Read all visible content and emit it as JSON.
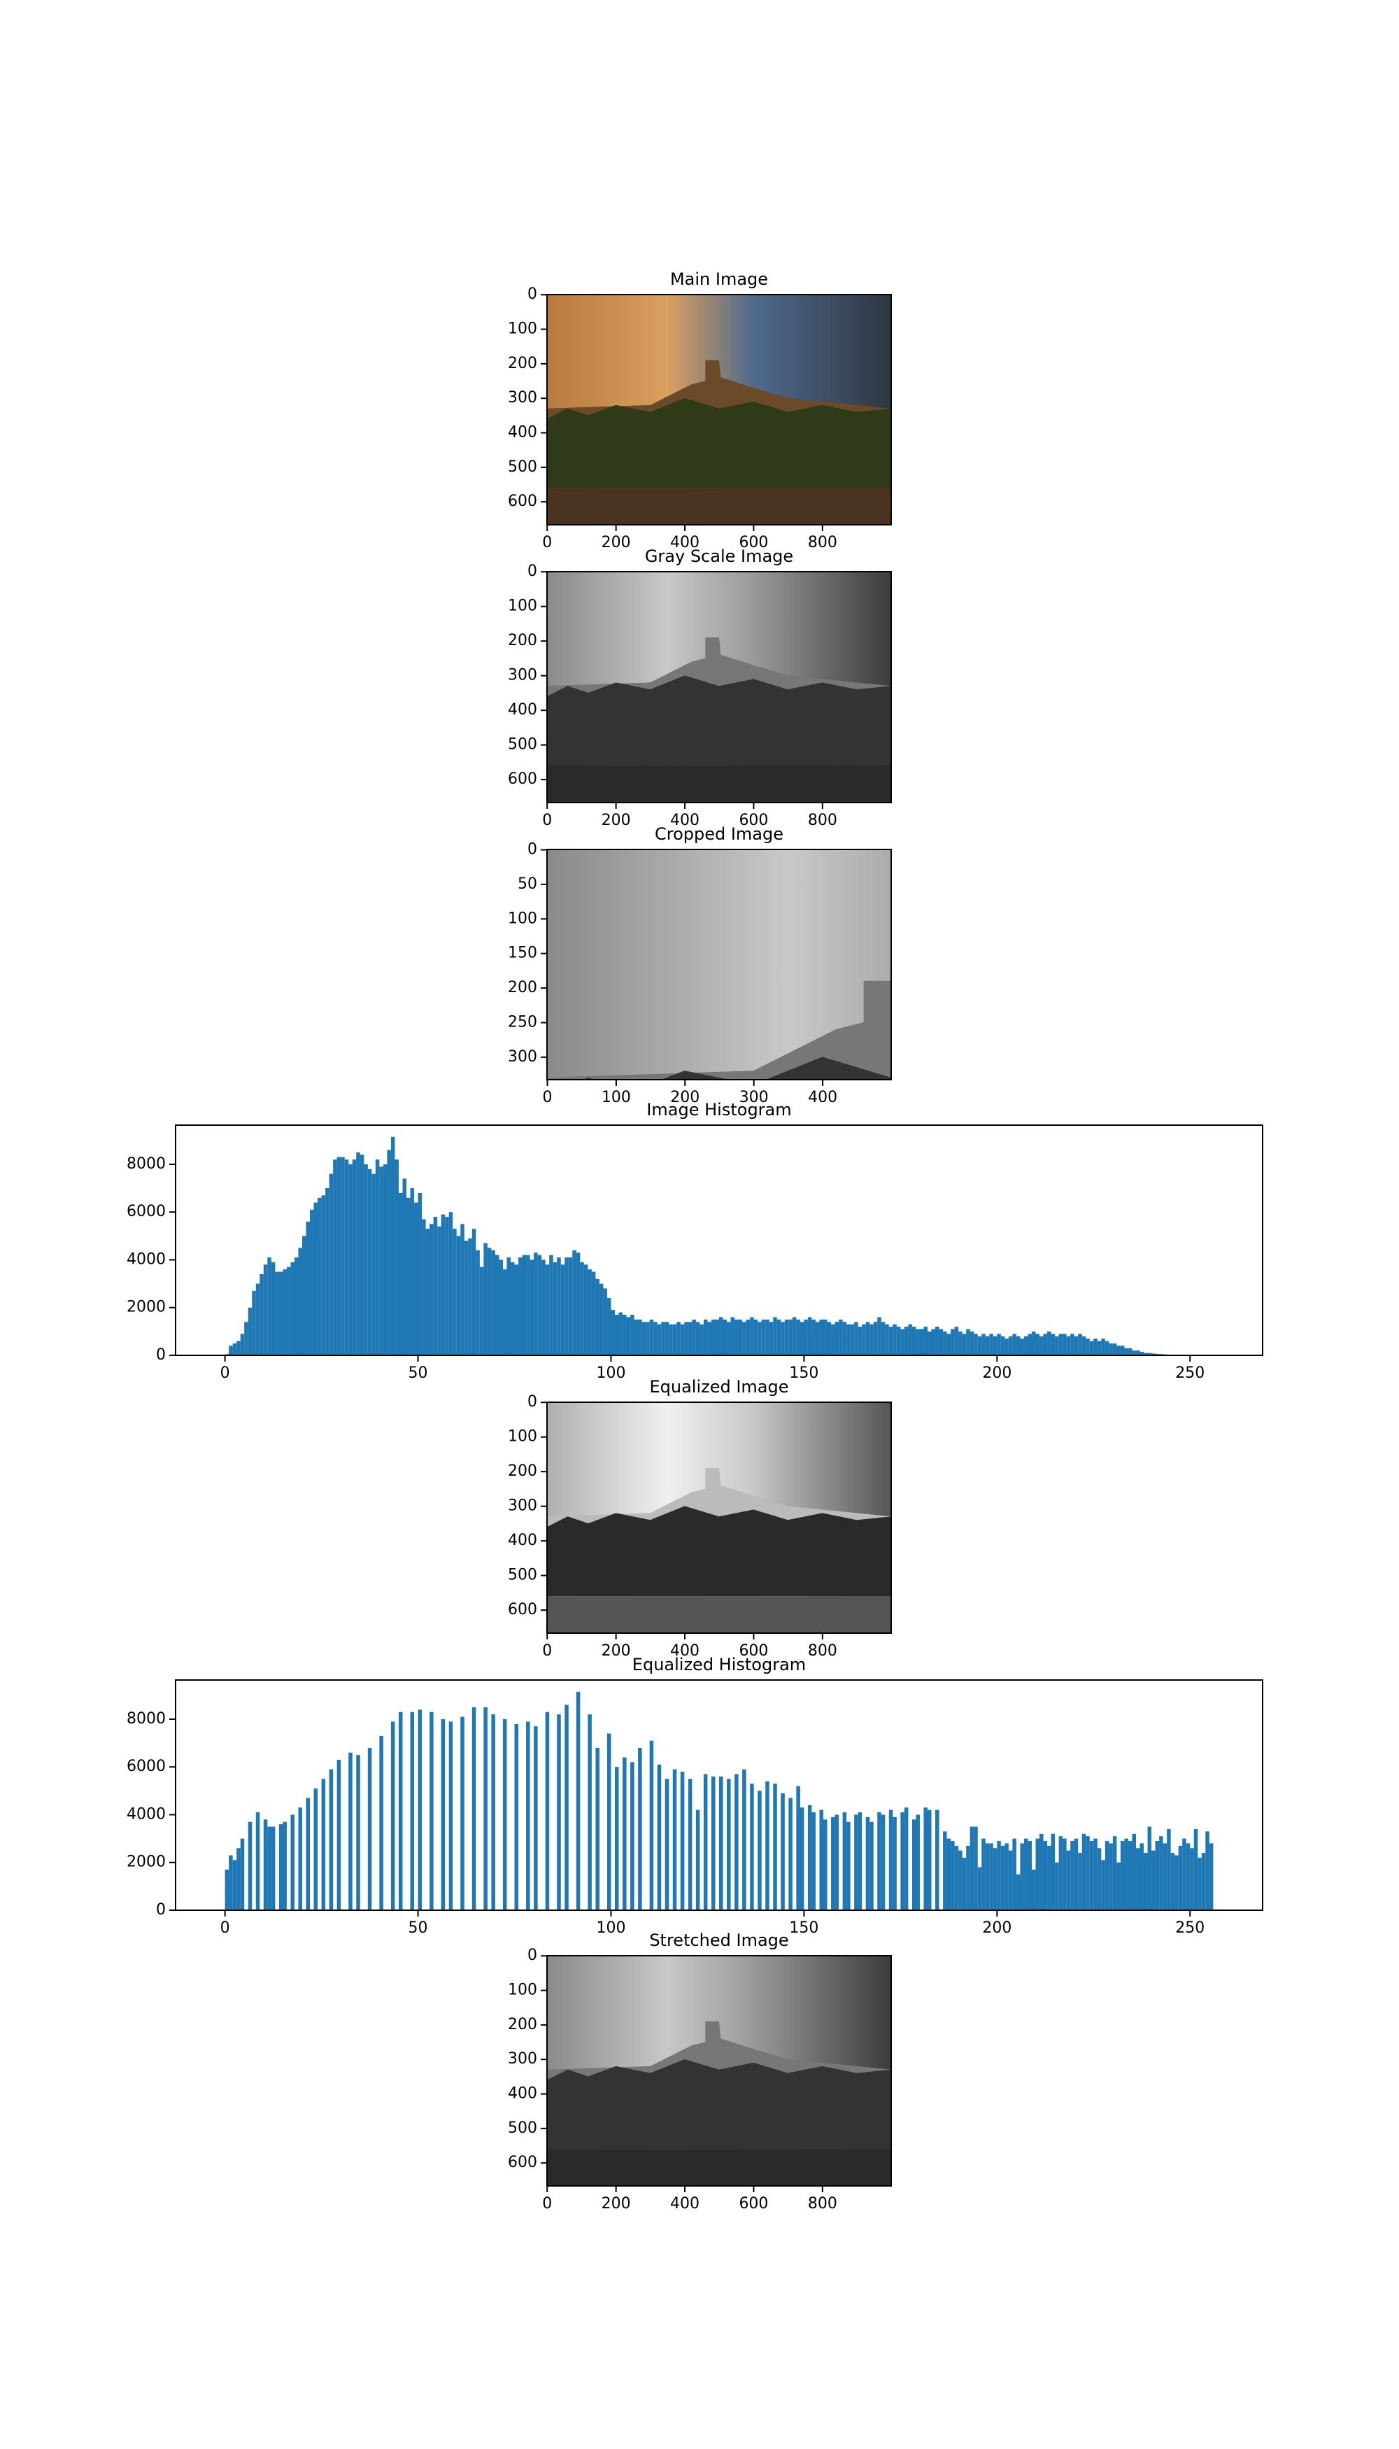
{
  "chart_data": [
    {
      "type": "image",
      "title": "Main Image",
      "xlim": [
        -0.5,
        999.5
      ],
      "ylim": [
        666.5,
        -0.5
      ],
      "xticks": [
        0,
        200,
        400,
        600,
        800
      ],
      "yticks": [
        0,
        100,
        200,
        300,
        400,
        500,
        600
      ]
    },
    {
      "type": "image",
      "title": "Gray Scale Image",
      "xlim": [
        -0.5,
        999.5
      ],
      "ylim": [
        666.5,
        -0.5
      ],
      "xticks": [
        0,
        200,
        400,
        600,
        800
      ],
      "yticks": [
        0,
        100,
        200,
        300,
        400,
        500,
        600
      ]
    },
    {
      "type": "image",
      "title": "Cropped Image",
      "xlim": [
        -0.5,
        499.5
      ],
      "ylim": [
        332.5,
        -0.5
      ],
      "xticks": [
        0,
        100,
        200,
        300,
        400
      ],
      "yticks": [
        0,
        50,
        100,
        150,
        200,
        250,
        300
      ]
    },
    {
      "type": "histogram",
      "title": "Image Histogram",
      "color": "#1f77b4",
      "xlim": [
        -12.8,
        268.8
      ],
      "ylim": [
        0,
        9640
      ],
      "xticks": [
        0,
        50,
        100,
        150,
        200,
        250
      ],
      "yticks": [
        0,
        2000,
        4000,
        6000,
        8000
      ],
      "bins": [
        0,
        1,
        2,
        3,
        4,
        5,
        6,
        7,
        8,
        9,
        10,
        11,
        12,
        13,
        14,
        15,
        16,
        17,
        18,
        19,
        20,
        21,
        22,
        23,
        24,
        25,
        26,
        27,
        28,
        29,
        30,
        31,
        32,
        33,
        34,
        35,
        36,
        37,
        38,
        39,
        40,
        41,
        42,
        43,
        44,
        45,
        46,
        47,
        48,
        49,
        50,
        51,
        52,
        53,
        54,
        55,
        56,
        57,
        58,
        59,
        60,
        61,
        62,
        63,
        64,
        65,
        66,
        67,
        68,
        69,
        70,
        71,
        72,
        73,
        74,
        75,
        76,
        77,
        78,
        79,
        80,
        81,
        82,
        83,
        84,
        85,
        86,
        87,
        88,
        89,
        90,
        91,
        92,
        93,
        94,
        95,
        96,
        97,
        98,
        99,
        100,
        101,
        102,
        103,
        104,
        105,
        106,
        107,
        108,
        109,
        110,
        111,
        112,
        113,
        114,
        115,
        116,
        117,
        118,
        119,
        120,
        121,
        122,
        123,
        124,
        125,
        126,
        127,
        128,
        129,
        130,
        131,
        132,
        133,
        134,
        135,
        136,
        137,
        138,
        139,
        140,
        141,
        142,
        143,
        144,
        145,
        146,
        147,
        148,
        149,
        150,
        151,
        152,
        153,
        154,
        155,
        156,
        157,
        158,
        159,
        160,
        161,
        162,
        163,
        164,
        165,
        166,
        167,
        168,
        169,
        170,
        171,
        172,
        173,
        174,
        175,
        176,
        177,
        178,
        179,
        180,
        181,
        182,
        183,
        184,
        185,
        186,
        187,
        188,
        189,
        190,
        191,
        192,
        193,
        194,
        195,
        196,
        197,
        198,
        199,
        200,
        201,
        202,
        203,
        204,
        205,
        206,
        207,
        208,
        209,
        210,
        211,
        212,
        213,
        214,
        215,
        216,
        217,
        218,
        219,
        220,
        221,
        222,
        223,
        224,
        225,
        226,
        227,
        228,
        229,
        230,
        231,
        232,
        233,
        234,
        235,
        236,
        237,
        238,
        239,
        240,
        241,
        242,
        243,
        244,
        245,
        246,
        247,
        248,
        249,
        250,
        251,
        252,
        253,
        254,
        255,
        256
      ],
      "values": [
        50,
        400,
        500,
        600,
        900,
        1400,
        2000,
        2700,
        3000,
        3400,
        3800,
        4100,
        3900,
        3500,
        3500,
        3600,
        3700,
        3900,
        4100,
        4500,
        5000,
        5600,
        6100,
        6400,
        6600,
        6700,
        7000,
        7600,
        8200,
        8300,
        8300,
        8200,
        8000,
        8200,
        8500,
        8400,
        8000,
        7800,
        7600,
        8200,
        7900,
        8000,
        8600,
        9150,
        8200,
        6800,
        7400,
        6600,
        7000,
        6400,
        6800,
        5700,
        5300,
        5500,
        5800,
        5400,
        5900,
        5800,
        6000,
        5300,
        5000,
        5500,
        4800,
        4900,
        5300,
        4400,
        3700,
        4700,
        4500,
        4400,
        4200,
        4000,
        3600,
        4100,
        3900,
        3800,
        4100,
        4200,
        4200,
        4000,
        4300,
        4200,
        4000,
        3800,
        4200,
        3900,
        4100,
        3800,
        4100,
        4100,
        4400,
        4300,
        3900,
        3800,
        3600,
        3500,
        3200,
        3000,
        2800,
        2400,
        1900,
        1700,
        1800,
        1700,
        1600,
        1700,
        1500,
        1500,
        1400,
        1400,
        1500,
        1400,
        1300,
        1400,
        1400,
        1300,
        1300,
        1400,
        1300,
        1400,
        1400,
        1500,
        1400,
        1300,
        1500,
        1400,
        1500,
        1500,
        1600,
        1500,
        1400,
        1600,
        1500,
        1500,
        1400,
        1500,
        1600,
        1500,
        1400,
        1500,
        1500,
        1400,
        1600,
        1500,
        1400,
        1500,
        1500,
        1600,
        1500,
        1400,
        1500,
        1600,
        1500,
        1400,
        1500,
        1500,
        1400,
        1300,
        1400,
        1500,
        1400,
        1300,
        1300,
        1400,
        1200,
        1300,
        1400,
        1300,
        1400,
        1600,
        1400,
        1300,
        1200,
        1300,
        1200,
        1100,
        1200,
        1300,
        1200,
        1100,
        1100,
        1200,
        1000,
        1100,
        1200,
        1100,
        1000,
        900,
        1100,
        1200,
        1000,
        900,
        1100,
        1000,
        900,
        800,
        900,
        800,
        900,
        800,
        900,
        800,
        700,
        800,
        900,
        800,
        700,
        800,
        900,
        1000,
        900,
        800,
        900,
        1000,
        900,
        800,
        900,
        900,
        800,
        900,
        800,
        900,
        800,
        700,
        600,
        700,
        600,
        700,
        600,
        500,
        500,
        400,
        400,
        300,
        300,
        200,
        200,
        150,
        100,
        100,
        80,
        60,
        50,
        40,
        30,
        20,
        10,
        10,
        5,
        5,
        0,
        0,
        0,
        0,
        0,
        0
      ]
    },
    {
      "type": "image",
      "title": "Equalized Image",
      "xlim": [
        -0.5,
        999.5
      ],
      "ylim": [
        666.5,
        -0.5
      ],
      "xticks": [
        0,
        200,
        400,
        600,
        800
      ],
      "yticks": [
        0,
        100,
        200,
        300,
        400,
        500,
        600
      ]
    },
    {
      "type": "histogram",
      "title": "Equalized Histogram",
      "color": "#1f77b4",
      "xlim": [
        -12.8,
        268.8
      ],
      "ylim": [
        0,
        9640
      ],
      "xticks": [
        0,
        50,
        100,
        150,
        200,
        250
      ],
      "yticks": [
        0,
        2000,
        4000,
        6000,
        8000
      ],
      "bins": [
        0,
        1,
        2,
        3,
        4,
        5,
        6,
        7,
        8,
        9,
        10,
        11,
        12,
        13,
        14,
        15,
        16,
        17,
        18,
        19,
        20,
        21,
        22,
        23,
        24,
        25,
        26,
        27,
        28,
        29,
        30,
        31,
        32,
        33,
        34,
        35,
        36,
        37,
        38,
        39,
        40,
        41,
        42,
        43,
        44,
        45,
        46,
        47,
        48,
        49,
        50,
        51,
        52,
        53,
        54,
        55,
        56,
        57,
        58,
        59,
        60,
        61,
        62,
        63,
        64,
        65,
        66,
        67,
        68,
        69,
        70,
        71,
        72,
        73,
        74,
        75,
        76,
        77,
        78,
        79,
        80,
        81,
        82,
        83,
        84,
        85,
        86,
        87,
        88,
        89,
        90,
        91,
        92,
        93,
        94,
        95,
        96,
        97,
        98,
        99,
        100,
        101,
        102,
        103,
        104,
        105,
        106,
        107,
        108,
        109,
        110,
        111,
        112,
        113,
        114,
        115,
        116,
        117,
        118,
        119,
        120,
        121,
        122,
        123,
        124,
        125,
        126,
        127,
        128,
        129,
        130,
        131,
        132,
        133,
        134,
        135,
        136,
        137,
        138,
        139,
        140,
        141,
        142,
        143,
        144,
        145,
        146,
        147,
        148,
        149,
        150,
        151,
        152,
        153,
        154,
        155,
        156,
        157,
        158,
        159,
        160,
        161,
        162,
        163,
        164,
        165,
        166,
        167,
        168,
        169,
        170,
        171,
        172,
        173,
        174,
        175,
        176,
        177,
        178,
        179,
        180,
        181,
        182,
        183,
        184,
        185,
        186,
        187,
        188,
        189,
        190,
        191,
        192,
        193,
        194,
        195,
        196,
        197,
        198,
        199,
        200,
        201,
        202,
        203,
        204,
        205,
        206,
        207,
        208,
        209,
        210,
        211,
        212,
        213,
        214,
        215,
        216,
        217,
        218,
        219,
        220,
        221,
        222,
        223,
        224,
        225,
        226,
        227,
        228,
        229,
        230,
        231,
        232,
        233,
        234,
        235,
        236,
        237,
        238,
        239,
        240,
        241,
        242,
        243,
        244,
        245,
        246,
        247,
        248,
        249,
        250,
        251,
        252,
        253,
        254,
        255,
        256
      ],
      "values": [
        1700,
        2300,
        2100,
        2600,
        3000,
        0,
        3700,
        0,
        4100,
        0,
        3800,
        3500,
        3500,
        0,
        3600,
        3700,
        0,
        4000,
        0,
        4300,
        0,
        4700,
        0,
        5100,
        0,
        5500,
        0,
        5900,
        0,
        6300,
        0,
        0,
        6600,
        0,
        6500,
        0,
        0,
        6800,
        0,
        0,
        7300,
        0,
        0,
        7900,
        0,
        8300,
        0,
        0,
        8300,
        0,
        8400,
        0,
        0,
        8300,
        0,
        0,
        8000,
        0,
        7900,
        0,
        0,
        8100,
        0,
        0,
        8500,
        0,
        0,
        8500,
        0,
        8200,
        0,
        0,
        8000,
        0,
        0,
        7800,
        0,
        0,
        7900,
        0,
        7700,
        0,
        0,
        8300,
        0,
        0,
        8200,
        0,
        8600,
        0,
        0,
        9150,
        0,
        0,
        8200,
        0,
        6800,
        0,
        0,
        7400,
        0,
        6000,
        0,
        6400,
        0,
        6200,
        0,
        6800,
        0,
        0,
        7100,
        0,
        6100,
        0,
        5500,
        0,
        5900,
        0,
        5800,
        0,
        5500,
        0,
        4200,
        0,
        5700,
        0,
        5600,
        0,
        5600,
        0,
        5500,
        0,
        5700,
        0,
        5900,
        0,
        5300,
        0,
        5000,
        0,
        5400,
        0,
        5300,
        0,
        4900,
        0,
        4700,
        0,
        5200,
        4300,
        0,
        4400,
        4100,
        0,
        4200,
        3800,
        0,
        3900,
        4000,
        0,
        4100,
        3700,
        0,
        4000,
        4100,
        0,
        3900,
        3700,
        0,
        4100,
        4000,
        0,
        4200,
        3900,
        0,
        4100,
        4300,
        0,
        3800,
        4000,
        0,
        4300,
        4200,
        0,
        4200,
        0,
        3300,
        3000,
        2900,
        2700,
        2500,
        2200,
        2700,
        3500,
        3500,
        1800,
        3000,
        2800,
        2800,
        2600,
        2900,
        2700,
        2800,
        2500,
        3000,
        1500,
        2800,
        3000,
        2900,
        1700,
        3000,
        3200,
        2900,
        2700,
        3200,
        2000,
        3100,
        3000,
        2500,
        2900,
        3000,
        2400,
        3200,
        3100,
        2900,
        3000,
        2600,
        2100,
        2900,
        2800,
        3100,
        2000,
        2900,
        3000,
        2900,
        3200,
        2600,
        2800,
        2400,
        3500,
        2500,
        2900,
        3100,
        2800,
        3400,
        2400,
        2300,
        2700,
        3000,
        2800,
        2600,
        3400,
        2200,
        2400,
        3300,
        2800
      ]
    },
    {
      "type": "image",
      "title": "Stretched Image",
      "xlim": [
        -0.5,
        999.5
      ],
      "ylim": [
        666.5,
        -0.5
      ],
      "xticks": [
        0,
        200,
        400,
        600,
        800
      ],
      "yticks": [
        0,
        100,
        200,
        300,
        400,
        500,
        600
      ]
    }
  ]
}
